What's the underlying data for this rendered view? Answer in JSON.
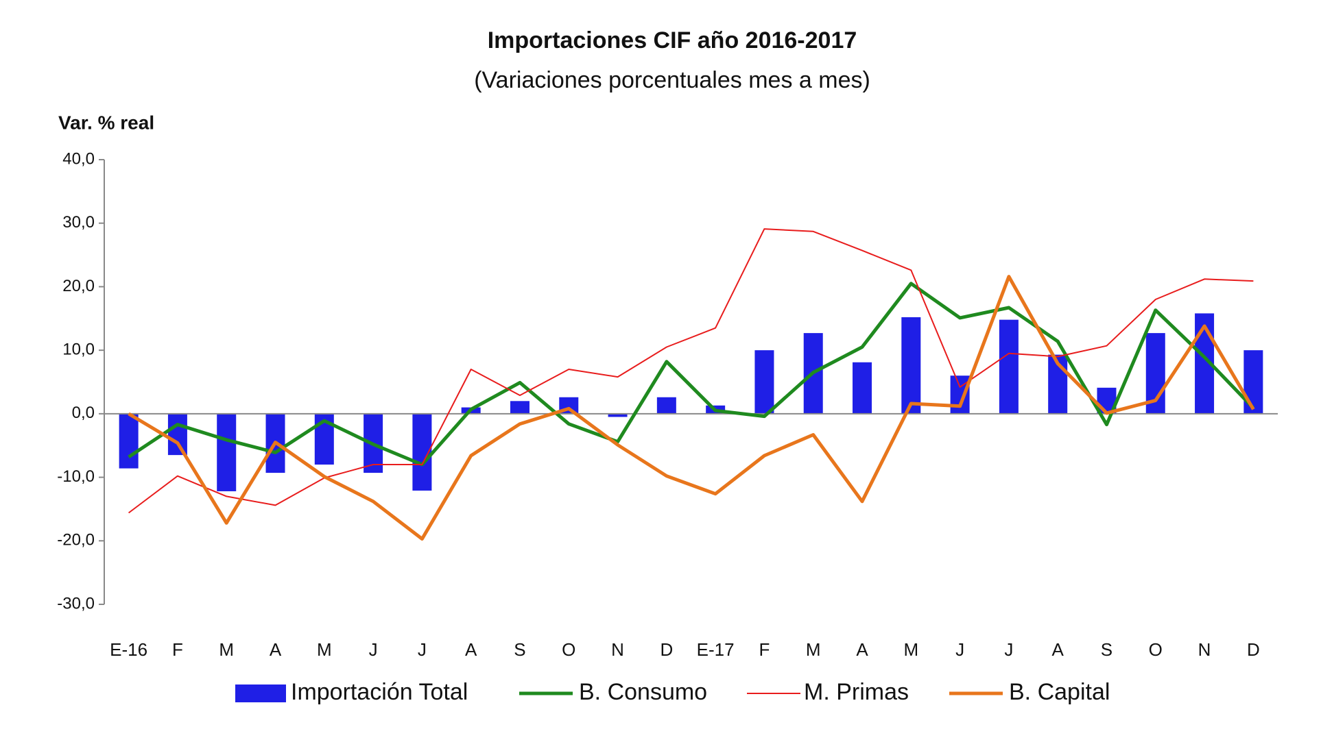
{
  "chart_data": {
    "type": "bar_line",
    "title": "Importaciones CIF año 2016-2017",
    "subtitle": "(Variaciones porcentuales mes a mes)",
    "y_label": "Var. % real",
    "categories": [
      "E-16",
      "F",
      "M",
      "A",
      "M",
      "J",
      "J",
      "A",
      "S",
      "O",
      "N",
      "D",
      "E-17",
      "F",
      "M",
      "A",
      "M",
      "J",
      "J",
      "A",
      "S",
      "O",
      "N",
      "D"
    ],
    "ylim": [
      -30,
      40
    ],
    "yticks": [
      {
        "value": 40,
        "label": "40,0"
      },
      {
        "value": 30,
        "label": "30,0"
      },
      {
        "value": 20,
        "label": "20,0"
      },
      {
        "value": 10,
        "label": "10,0"
      },
      {
        "value": 0,
        "label": "0,0"
      },
      {
        "value": -10,
        "label": "-10,0"
      },
      {
        "value": -20,
        "label": "-20,0"
      },
      {
        "value": -30,
        "label": "-30,0"
      }
    ],
    "grid": false,
    "legend": "bottom",
    "series": [
      {
        "name": "Importación Total",
        "kind": "bar",
        "color": "#1f1fe6",
        "values": [
          -8.6,
          -6.5,
          -12.2,
          -9.3,
          -8.0,
          -9.3,
          -12.1,
          1.0,
          2.0,
          2.6,
          -0.5,
          2.6,
          1.3,
          10.0,
          12.7,
          8.1,
          15.2,
          6.0,
          14.8,
          9.3,
          4.1,
          12.7,
          15.8,
          10.0
        ]
      },
      {
        "name": "B. Consumo",
        "kind": "line",
        "width": 5,
        "color": "#1f8a1f",
        "values": [
          -6.8,
          -1.7,
          -4.1,
          -6.1,
          -1.1,
          -4.8,
          -8.0,
          0.7,
          4.9,
          -1.6,
          -4.4,
          8.2,
          0.5,
          -0.4,
          6.5,
          10.5,
          20.5,
          15.1,
          16.7,
          11.4,
          -1.7,
          16.3,
          8.9,
          0.9
        ]
      },
      {
        "name": "M. Primas",
        "kind": "line",
        "width": 2,
        "color": "#e81c1c",
        "values": [
          -15.6,
          -9.8,
          -13.0,
          -14.4,
          -10.1,
          -8.0,
          -8.0,
          7.0,
          2.9,
          7.0,
          5.8,
          10.5,
          13.5,
          29.1,
          28.7,
          25.7,
          22.6,
          4.2,
          9.5,
          9.0,
          10.7,
          18.0,
          21.2,
          20.9
        ]
      },
      {
        "name": "B. Capital",
        "kind": "line",
        "width": 5,
        "color": "#e8761c",
        "values": [
          0.0,
          -4.6,
          -17.2,
          -4.5,
          -9.9,
          -13.8,
          -19.7,
          -6.6,
          -1.6,
          0.8,
          -4.9,
          -9.8,
          -12.6,
          -6.6,
          -3.3,
          -13.8,
          1.6,
          1.2,
          21.6,
          7.9,
          0.1,
          2.1,
          13.8,
          0.7
        ]
      }
    ]
  }
}
